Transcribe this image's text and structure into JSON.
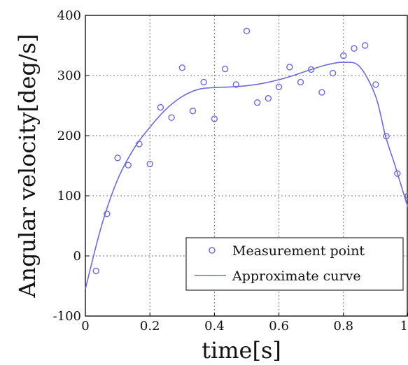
{
  "chart_data": {
    "type": "scatter",
    "title": "",
    "xlabel": "time[s]",
    "ylabel": "Angular velocity[deg/s]",
    "xlim": [
      0,
      1
    ],
    "ylim": [
      -100,
      400
    ],
    "grid": true,
    "legend_position": "bottom-right",
    "x_ticks": [
      "0",
      "0.2",
      "0.4",
      "0.6",
      "0.8",
      "1"
    ],
    "y_ticks": [
      "-100",
      "0",
      "100",
      "200",
      "300",
      "400"
    ],
    "colors": {
      "series": "#6b6bdc",
      "grid": "#777777",
      "axis": "#000000"
    },
    "series": [
      {
        "name": "Measurement point",
        "kind": "markers",
        "x": [
          0.033,
          0.067,
          0.1,
          0.133,
          0.167,
          0.2,
          0.233,
          0.267,
          0.3,
          0.333,
          0.367,
          0.4,
          0.433,
          0.467,
          0.5,
          0.533,
          0.567,
          0.6,
          0.633,
          0.667,
          0.7,
          0.733,
          0.767,
          0.8,
          0.833,
          0.867,
          0.9,
          0.933,
          0.967,
          1.0
        ],
        "y": [
          -25,
          70,
          163,
          151,
          186,
          153,
          247,
          230,
          313,
          241,
          289,
          228,
          311,
          285,
          374,
          255,
          262,
          281,
          314,
          289,
          310,
          272,
          304,
          333,
          345,
          350,
          285,
          199,
          137,
          100
        ]
      },
      {
        "name": "Approximate curve",
        "kind": "line",
        "x": [
          0,
          0.05,
          0.1,
          0.15,
          0.2,
          0.25,
          0.3,
          0.35,
          0.4,
          0.45,
          0.5,
          0.55,
          0.6,
          0.65,
          0.7,
          0.75,
          0.8,
          0.85,
          0.9,
          0.93,
          0.96,
          1.0
        ],
        "y": [
          -55,
          50,
          127,
          178,
          214,
          244,
          265,
          277,
          280,
          281,
          283,
          287,
          293,
          301,
          310,
          318,
          322,
          315,
          265,
          200,
          150,
          80
        ]
      }
    ]
  }
}
